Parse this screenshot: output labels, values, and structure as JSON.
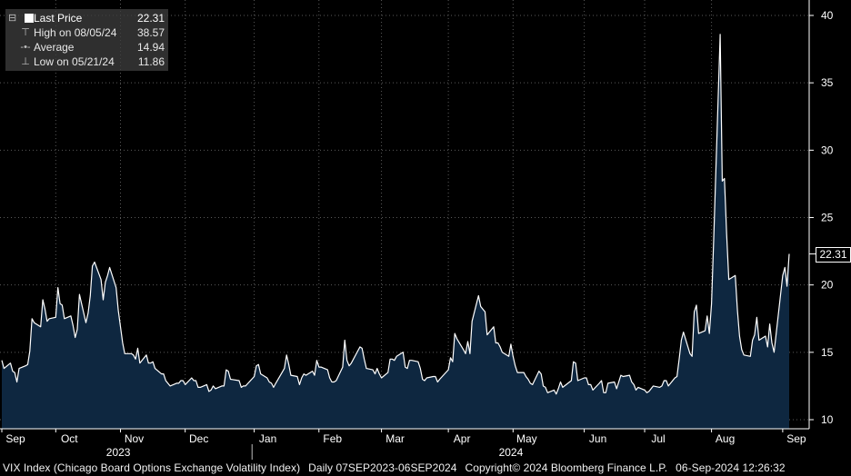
{
  "legend": {
    "rows": [
      {
        "label": "Last Price",
        "value": "22.31",
        "icon": "filled-square-icon"
      },
      {
        "label": "High on 08/05/24",
        "value": "38.57",
        "icon": "high-marker-icon"
      },
      {
        "label": "Average",
        "value": "14.94",
        "icon": "average-marker-icon"
      },
      {
        "label": "Low on 05/21/24",
        "value": "11.86",
        "icon": "low-marker-icon"
      }
    ]
  },
  "last_value_tag": "22.31",
  "footer": {
    "security": "VIX Index (Chicago Board Options Exchange Volatility Index)",
    "period": "Daily 07SEP2023-06SEP2024",
    "copyright": "Copyright© 2024 Bloomberg Finance L.P.",
    "timestamp": "06-Sep-2024 12:26:32"
  },
  "colors": {
    "background": "#000000",
    "area_fill": "#0e2740",
    "line": "#ffffff",
    "grid": "#5a5a5a"
  },
  "chart_data": {
    "type": "area",
    "title": "",
    "xlabel": "",
    "ylabel": "",
    "ylim": [
      9.5,
      41
    ],
    "yticks": [
      10,
      15,
      20,
      25,
      30,
      35,
      40
    ],
    "grid": "dotted",
    "x_range": [
      "2023-09-07",
      "2024-09-06"
    ],
    "month_ticks": [
      {
        "label": "Sep",
        "date": "2023-09-07"
      },
      {
        "label": "Oct",
        "date": "2023-10-02"
      },
      {
        "label": "Nov",
        "date": "2023-11-01"
      },
      {
        "label": "Dec",
        "date": "2023-12-01"
      },
      {
        "label": "Jan",
        "date": "2024-01-02"
      },
      {
        "label": "Feb",
        "date": "2024-02-01"
      },
      {
        "label": "Mar",
        "date": "2024-03-01"
      },
      {
        "label": "Apr",
        "date": "2024-04-01"
      },
      {
        "label": "May",
        "date": "2024-05-01"
      },
      {
        "label": "Jun",
        "date": "2024-06-03"
      },
      {
        "label": "Jul",
        "date": "2024-07-01"
      },
      {
        "label": "Aug",
        "date": "2024-08-01"
      },
      {
        "label": "Sep",
        "date": "2024-09-03"
      }
    ],
    "year_labels": [
      {
        "label": "2023",
        "date": "2023-10-31"
      },
      {
        "label": "2024",
        "date": "2024-04-30"
      }
    ],
    "year_divider_date": "2024-01-01",
    "series": [
      {
        "values": [
          [
            "2023-09-07",
            14.4
          ],
          [
            "2023-09-08",
            13.8
          ],
          [
            "2023-09-11",
            14.2
          ],
          [
            "2023-09-12",
            13.6
          ],
          [
            "2023-09-13",
            13.5
          ],
          [
            "2023-09-14",
            12.8
          ],
          [
            "2023-09-15",
            13.8
          ],
          [
            "2023-09-18",
            14.0
          ],
          [
            "2023-09-19",
            14.1
          ],
          [
            "2023-09-20",
            15.1
          ],
          [
            "2023-09-21",
            17.5
          ],
          [
            "2023-09-22",
            17.2
          ],
          [
            "2023-09-25",
            16.9
          ],
          [
            "2023-09-26",
            18.9
          ],
          [
            "2023-09-27",
            18.2
          ],
          [
            "2023-09-28",
            17.3
          ],
          [
            "2023-09-29",
            17.5
          ],
          [
            "2023-10-02",
            17.6
          ],
          [
            "2023-10-03",
            19.8
          ],
          [
            "2023-10-04",
            18.6
          ],
          [
            "2023-10-05",
            18.5
          ],
          [
            "2023-10-06",
            17.5
          ],
          [
            "2023-10-09",
            17.7
          ],
          [
            "2023-10-10",
            17.0
          ],
          [
            "2023-10-11",
            16.1
          ],
          [
            "2023-10-12",
            16.7
          ],
          [
            "2023-10-13",
            19.3
          ],
          [
            "2023-10-16",
            17.2
          ],
          [
            "2023-10-17",
            17.9
          ],
          [
            "2023-10-18",
            19.2
          ],
          [
            "2023-10-19",
            21.4
          ],
          [
            "2023-10-20",
            21.7
          ],
          [
            "2023-10-23",
            20.4
          ],
          [
            "2023-10-24",
            18.9
          ],
          [
            "2023-10-25",
            20.2
          ],
          [
            "2023-10-26",
            20.7
          ],
          [
            "2023-10-27",
            21.3
          ],
          [
            "2023-10-30",
            19.8
          ],
          [
            "2023-10-31",
            18.1
          ],
          [
            "2023-11-01",
            16.9
          ],
          [
            "2023-11-02",
            15.7
          ],
          [
            "2023-11-03",
            14.9
          ],
          [
            "2023-11-06",
            14.9
          ],
          [
            "2023-11-07",
            14.8
          ],
          [
            "2023-11-08",
            14.5
          ],
          [
            "2023-11-09",
            15.3
          ],
          [
            "2023-11-10",
            14.2
          ],
          [
            "2023-11-13",
            14.8
          ],
          [
            "2023-11-14",
            14.2
          ],
          [
            "2023-11-15",
            14.2
          ],
          [
            "2023-11-16",
            14.3
          ],
          [
            "2023-11-17",
            13.8
          ],
          [
            "2023-11-20",
            13.4
          ],
          [
            "2023-11-21",
            13.4
          ],
          [
            "2023-11-22",
            12.9
          ],
          [
            "2023-11-24",
            12.5
          ],
          [
            "2023-11-27",
            12.7
          ],
          [
            "2023-11-28",
            12.7
          ],
          [
            "2023-11-29",
            12.9
          ],
          [
            "2023-11-30",
            12.9
          ],
          [
            "2023-12-01",
            12.6
          ],
          [
            "2023-12-04",
            13.1
          ],
          [
            "2023-12-05",
            12.9
          ],
          [
            "2023-12-06",
            12.9
          ],
          [
            "2023-12-07",
            12.4
          ],
          [
            "2023-12-08",
            12.4
          ],
          [
            "2023-12-11",
            12.6
          ],
          [
            "2023-12-12",
            12.1
          ],
          [
            "2023-12-13",
            12.2
          ],
          [
            "2023-12-14",
            12.5
          ],
          [
            "2023-12-15",
            12.3
          ],
          [
            "2023-12-18",
            12.5
          ],
          [
            "2023-12-19",
            12.5
          ],
          [
            "2023-12-20",
            13.7
          ],
          [
            "2023-12-21",
            13.6
          ],
          [
            "2023-12-22",
            13.0
          ],
          [
            "2023-12-26",
            12.9
          ],
          [
            "2023-12-27",
            12.4
          ],
          [
            "2023-12-28",
            12.5
          ],
          [
            "2023-12-29",
            12.5
          ],
          [
            "2024-01-02",
            13.2
          ],
          [
            "2024-01-03",
            14.0
          ],
          [
            "2024-01-04",
            14.1
          ],
          [
            "2024-01-05",
            13.4
          ],
          [
            "2024-01-08",
            13.1
          ],
          [
            "2024-01-09",
            12.8
          ],
          [
            "2024-01-10",
            12.7
          ],
          [
            "2024-01-11",
            12.4
          ],
          [
            "2024-01-12",
            12.7
          ],
          [
            "2024-01-16",
            13.8
          ],
          [
            "2024-01-17",
            14.8
          ],
          [
            "2024-01-18",
            14.1
          ],
          [
            "2024-01-19",
            13.3
          ],
          [
            "2024-01-22",
            13.2
          ],
          [
            "2024-01-23",
            12.6
          ],
          [
            "2024-01-24",
            13.1
          ],
          [
            "2024-01-25",
            13.4
          ],
          [
            "2024-01-26",
            13.3
          ],
          [
            "2024-01-29",
            13.6
          ],
          [
            "2024-01-30",
            13.3
          ],
          [
            "2024-01-31",
            14.4
          ],
          [
            "2024-02-01",
            13.9
          ],
          [
            "2024-02-02",
            13.9
          ],
          [
            "2024-02-05",
            13.7
          ],
          [
            "2024-02-06",
            13.1
          ],
          [
            "2024-02-07",
            12.8
          ],
          [
            "2024-02-08",
            12.8
          ],
          [
            "2024-02-09",
            12.9
          ],
          [
            "2024-02-12",
            13.9
          ],
          [
            "2024-02-13",
            15.9
          ],
          [
            "2024-02-14",
            14.4
          ],
          [
            "2024-02-15",
            14.0
          ],
          [
            "2024-02-16",
            14.2
          ],
          [
            "2024-02-20",
            15.4
          ],
          [
            "2024-02-21",
            15.3
          ],
          [
            "2024-02-22",
            14.5
          ],
          [
            "2024-02-23",
            13.8
          ],
          [
            "2024-02-26",
            13.7
          ],
          [
            "2024-02-27",
            13.4
          ],
          [
            "2024-02-28",
            13.8
          ],
          [
            "2024-02-29",
            13.4
          ],
          [
            "2024-03-01",
            13.1
          ],
          [
            "2024-03-04",
            13.5
          ],
          [
            "2024-03-05",
            14.5
          ],
          [
            "2024-03-06",
            14.5
          ],
          [
            "2024-03-07",
            14.4
          ],
          [
            "2024-03-08",
            14.7
          ],
          [
            "2024-03-11",
            15.0
          ],
          [
            "2024-03-12",
            13.9
          ],
          [
            "2024-03-13",
            13.8
          ],
          [
            "2024-03-14",
            14.4
          ],
          [
            "2024-03-15",
            14.4
          ],
          [
            "2024-03-18",
            14.3
          ],
          [
            "2024-03-19",
            13.8
          ],
          [
            "2024-03-20",
            13.0
          ],
          [
            "2024-03-21",
            12.9
          ],
          [
            "2024-03-22",
            13.1
          ],
          [
            "2024-03-25",
            13.2
          ],
          [
            "2024-03-26",
            13.2
          ],
          [
            "2024-03-27",
            12.8
          ],
          [
            "2024-03-28",
            13.0
          ],
          [
            "2024-04-01",
            13.7
          ],
          [
            "2024-04-02",
            14.6
          ],
          [
            "2024-04-03",
            14.3
          ],
          [
            "2024-04-04",
            16.4
          ],
          [
            "2024-04-05",
            16.0
          ],
          [
            "2024-04-08",
            15.2
          ],
          [
            "2024-04-09",
            14.9
          ],
          [
            "2024-04-10",
            15.8
          ],
          [
            "2024-04-11",
            14.9
          ],
          [
            "2024-04-12",
            17.3
          ],
          [
            "2024-04-15",
            19.2
          ],
          [
            "2024-04-16",
            18.4
          ],
          [
            "2024-04-17",
            18.2
          ],
          [
            "2024-04-18",
            18.0
          ],
          [
            "2024-04-19",
            16.3
          ],
          [
            "2024-04-22",
            16.9
          ],
          [
            "2024-04-23",
            15.7
          ],
          [
            "2024-04-24",
            15.7
          ],
          [
            "2024-04-25",
            15.4
          ],
          [
            "2024-04-26",
            15.0
          ],
          [
            "2024-04-29",
            14.7
          ],
          [
            "2024-04-30",
            15.6
          ],
          [
            "2024-05-01",
            14.7
          ],
          [
            "2024-05-02",
            14.0
          ],
          [
            "2024-05-03",
            13.5
          ],
          [
            "2024-05-06",
            13.5
          ],
          [
            "2024-05-07",
            13.2
          ],
          [
            "2024-05-08",
            13.0
          ],
          [
            "2024-05-09",
            12.7
          ],
          [
            "2024-05-10",
            12.6
          ],
          [
            "2024-05-13",
            13.6
          ],
          [
            "2024-05-14",
            13.4
          ],
          [
            "2024-05-15",
            12.5
          ],
          [
            "2024-05-16",
            12.4
          ],
          [
            "2024-05-17",
            12.0
          ],
          [
            "2024-05-20",
            12.2
          ],
          [
            "2024-05-21",
            11.9
          ],
          [
            "2024-05-22",
            12.3
          ],
          [
            "2024-05-23",
            12.8
          ],
          [
            "2024-05-24",
            12.4
          ],
          [
            "2024-05-28",
            12.9
          ],
          [
            "2024-05-29",
            14.3
          ],
          [
            "2024-05-30",
            14.2
          ],
          [
            "2024-05-31",
            12.9
          ],
          [
            "2024-06-03",
            13.1
          ],
          [
            "2024-06-04",
            13.1
          ],
          [
            "2024-06-05",
            12.6
          ],
          [
            "2024-06-06",
            12.6
          ],
          [
            "2024-06-07",
            12.2
          ],
          [
            "2024-06-10",
            12.7
          ],
          [
            "2024-06-11",
            12.9
          ],
          [
            "2024-06-12",
            12.0
          ],
          [
            "2024-06-13",
            12.0
          ],
          [
            "2024-06-14",
            12.7
          ],
          [
            "2024-06-17",
            12.8
          ],
          [
            "2024-06-18",
            12.3
          ],
          [
            "2024-06-20",
            13.3
          ],
          [
            "2024-06-21",
            13.2
          ],
          [
            "2024-06-24",
            13.3
          ],
          [
            "2024-06-25",
            12.8
          ],
          [
            "2024-06-26",
            12.6
          ],
          [
            "2024-06-27",
            12.2
          ],
          [
            "2024-06-28",
            12.4
          ],
          [
            "2024-07-01",
            12.2
          ],
          [
            "2024-07-02",
            12.0
          ],
          [
            "2024-07-03",
            12.1
          ],
          [
            "2024-07-05",
            12.5
          ],
          [
            "2024-07-08",
            12.4
          ],
          [
            "2024-07-09",
            12.5
          ],
          [
            "2024-07-10",
            12.9
          ],
          [
            "2024-07-11",
            12.9
          ],
          [
            "2024-07-12",
            12.5
          ],
          [
            "2024-07-15",
            13.1
          ],
          [
            "2024-07-16",
            13.2
          ],
          [
            "2024-07-17",
            14.5
          ],
          [
            "2024-07-18",
            15.9
          ],
          [
            "2024-07-19",
            16.5
          ],
          [
            "2024-07-22",
            14.9
          ],
          [
            "2024-07-23",
            14.7
          ],
          [
            "2024-07-24",
            18.0
          ],
          [
            "2024-07-25",
            18.5
          ],
          [
            "2024-07-26",
            16.4
          ],
          [
            "2024-07-29",
            16.6
          ],
          [
            "2024-07-30",
            17.7
          ],
          [
            "2024-07-31",
            16.4
          ],
          [
            "2024-08-01",
            18.6
          ],
          [
            "2024-08-02",
            23.4
          ],
          [
            "2024-08-05",
            38.6
          ],
          [
            "2024-08-06",
            27.7
          ],
          [
            "2024-08-07",
            27.9
          ],
          [
            "2024-08-08",
            23.8
          ],
          [
            "2024-08-09",
            20.4
          ],
          [
            "2024-08-12",
            20.7
          ],
          [
            "2024-08-13",
            18.1
          ],
          [
            "2024-08-14",
            16.2
          ],
          [
            "2024-08-15",
            15.2
          ],
          [
            "2024-08-16",
            14.8
          ],
          [
            "2024-08-19",
            14.7
          ],
          [
            "2024-08-20",
            15.9
          ],
          [
            "2024-08-21",
            16.3
          ],
          [
            "2024-08-22",
            17.6
          ],
          [
            "2024-08-23",
            15.9
          ],
          [
            "2024-08-26",
            16.2
          ],
          [
            "2024-08-27",
            15.4
          ],
          [
            "2024-08-28",
            17.1
          ],
          [
            "2024-08-29",
            15.7
          ],
          [
            "2024-08-30",
            15.0
          ],
          [
            "2024-09-03",
            20.7
          ],
          [
            "2024-09-04",
            21.3
          ],
          [
            "2024-09-05",
            19.9
          ],
          [
            "2024-09-06",
            22.3
          ]
        ]
      }
    ]
  }
}
